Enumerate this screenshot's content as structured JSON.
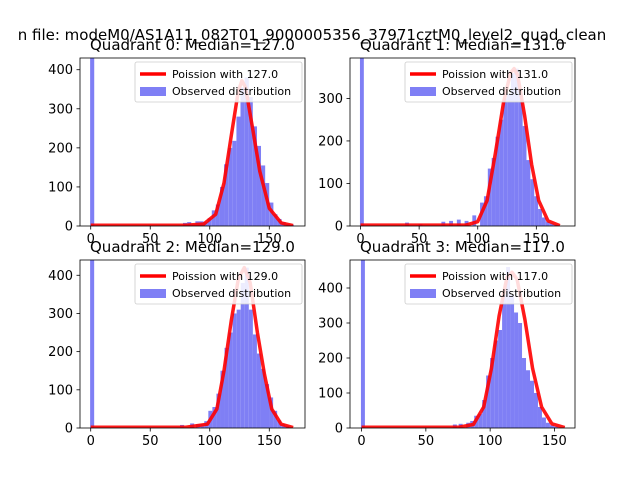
{
  "figure": {
    "suptitle": "n file: modeM0/AS1A11_082T01_9000005356_37971cztM0_level2_quad_clean"
  },
  "colors": {
    "hist": "#7f7ff5",
    "poisson": "#ff0000"
  },
  "chart_data": [
    {
      "type": "bar",
      "title": "Quadrant 0: Median=127.0",
      "xlim": [
        -9,
        180
      ],
      "ylim": [
        0,
        430
      ],
      "xticks": [
        0,
        50,
        100,
        150
      ],
      "yticks": [
        0,
        100,
        200,
        300,
        400
      ],
      "legend": [
        "Poission with 127.0",
        "Observed distribution"
      ],
      "bin_width": 3.45,
      "observed_bins": [
        [
          -0.5,
          430
        ],
        [
          77.5,
          8
        ],
        [
          81,
          10
        ],
        [
          84.4,
          5
        ],
        [
          87.9,
          12
        ],
        [
          91.3,
          12
        ],
        [
          94.8,
          10
        ],
        [
          98.2,
          20
        ],
        [
          101.7,
          40
        ],
        [
          105.1,
          55
        ],
        [
          108.6,
          100
        ],
        [
          112,
          158
        ],
        [
          115.5,
          200
        ],
        [
          118.9,
          218
        ],
        [
          122.4,
          280
        ],
        [
          125.8,
          355
        ],
        [
          129.3,
          380
        ],
        [
          132.7,
          330
        ],
        [
          136.2,
          255
        ],
        [
          139.6,
          205
        ],
        [
          143.1,
          155
        ],
        [
          146.5,
          110
        ],
        [
          150,
          60
        ],
        [
          153.4,
          30
        ],
        [
          156.9,
          18
        ],
        [
          160.3,
          10
        ],
        [
          163.8,
          5
        ],
        [
          167.2,
          3
        ]
      ],
      "poisson_curve": [
        [
          0,
          2
        ],
        [
          80,
          2
        ],
        [
          95,
          5
        ],
        [
          105,
          30
        ],
        [
          112,
          110
        ],
        [
          118,
          230
        ],
        [
          124,
          345
        ],
        [
          127,
          372
        ],
        [
          130,
          355
        ],
        [
          136,
          250
        ],
        [
          142,
          140
        ],
        [
          150,
          45
        ],
        [
          160,
          8
        ],
        [
          170,
          1
        ]
      ]
    },
    {
      "type": "bar",
      "title": "Quadrant 1: Median=131.0",
      "xlim": [
        -9,
        183
      ],
      "ylim": [
        0,
        395
      ],
      "xticks": [
        0,
        50,
        100,
        150
      ],
      "yticks": [
        0,
        100,
        200,
        300
      ],
      "legend": [
        "Poission with 131.0",
        "Observed distribution"
      ],
      "bin_width": 3.3,
      "observed_bins": [
        [
          -0.5,
          395
        ],
        [
          38,
          8
        ],
        [
          49.5,
          5
        ],
        [
          69,
          10
        ],
        [
          75.6,
          12
        ],
        [
          82.2,
          15
        ],
        [
          88.8,
          12
        ],
        [
          95.4,
          25
        ],
        [
          102,
          55
        ],
        [
          105.3,
          70
        ],
        [
          108.6,
          135
        ],
        [
          111.9,
          160
        ],
        [
          115.2,
          210
        ],
        [
          118.5,
          250
        ],
        [
          121.8,
          300
        ],
        [
          125.1,
          310
        ],
        [
          128.4,
          360
        ],
        [
          131.7,
          370
        ],
        [
          135,
          310
        ],
        [
          138.3,
          235
        ],
        [
          141.6,
          155
        ],
        [
          144.9,
          110
        ],
        [
          148.2,
          70
        ],
        [
          151.5,
          40
        ],
        [
          154.8,
          20
        ],
        [
          158.1,
          10
        ],
        [
          161.4,
          6
        ],
        [
          164.7,
          3
        ]
      ],
      "poisson_curve": [
        [
          0,
          2
        ],
        [
          90,
          2
        ],
        [
          100,
          10
        ],
        [
          108,
          60
        ],
        [
          115,
          170
        ],
        [
          122,
          290
        ],
        [
          128,
          360
        ],
        [
          131,
          370
        ],
        [
          134,
          355
        ],
        [
          140,
          260
        ],
        [
          146,
          145
        ],
        [
          152,
          60
        ],
        [
          160,
          12
        ],
        [
          170,
          1
        ]
      ]
    },
    {
      "type": "bar",
      "title": "Quadrant 2: Median=129.0",
      "xlim": [
        -9,
        180
      ],
      "ylim": [
        0,
        440
      ],
      "xticks": [
        0,
        50,
        100,
        150
      ],
      "yticks": [
        0,
        100,
        200,
        300,
        400
      ],
      "legend": [
        "Poission with 129.0",
        "Observed distribution"
      ],
      "bin_width": 3.4,
      "observed_bins": [
        [
          -0.5,
          440
        ],
        [
          75,
          8
        ],
        [
          83.5,
          12
        ],
        [
          88.5,
          10
        ],
        [
          92,
          10
        ],
        [
          95.4,
          18
        ],
        [
          98.8,
          45
        ],
        [
          102.2,
          55
        ],
        [
          105.6,
          90
        ],
        [
          109,
          150
        ],
        [
          112.4,
          210
        ],
        [
          115.8,
          250
        ],
        [
          119.2,
          300
        ],
        [
          122.6,
          310
        ],
        [
          126,
          380
        ],
        [
          129.4,
          420
        ],
        [
          132.8,
          310
        ],
        [
          136.2,
          245
        ],
        [
          139.6,
          195
        ],
        [
          143,
          155
        ],
        [
          146.4,
          115
        ],
        [
          149.8,
          80
        ],
        [
          153.2,
          45
        ],
        [
          156.6,
          20
        ],
        [
          160,
          10
        ],
        [
          163.4,
          5
        ]
      ],
      "poisson_curve": [
        [
          0,
          2
        ],
        [
          80,
          2
        ],
        [
          98,
          10
        ],
        [
          106,
          50
        ],
        [
          112,
          150
        ],
        [
          118,
          280
        ],
        [
          124,
          390
        ],
        [
          129,
          420
        ],
        [
          134,
          380
        ],
        [
          140,
          250
        ],
        [
          146,
          140
        ],
        [
          152,
          50
        ],
        [
          160,
          10
        ],
        [
          170,
          1
        ]
      ]
    },
    {
      "type": "bar",
      "title": "Quadrant 3: Median=117.0",
      "xlim": [
        -9,
        166
      ],
      "ylim": [
        0,
        480
      ],
      "xticks": [
        0,
        50,
        100,
        150
      ],
      "yticks": [
        0,
        100,
        200,
        300,
        400
      ],
      "legend": [
        "Poission with 117.0",
        "Observed distribution"
      ],
      "bin_width": 3.1,
      "observed_bins": [
        [
          -0.5,
          480
        ],
        [
          71,
          10
        ],
        [
          75.5,
          12
        ],
        [
          81.4,
          15
        ],
        [
          84.5,
          20
        ],
        [
          87.6,
          35
        ],
        [
          90.7,
          40
        ],
        [
          93.8,
          80
        ],
        [
          96.9,
          150
        ],
        [
          100,
          200
        ],
        [
          103.1,
          250
        ],
        [
          106.2,
          280
        ],
        [
          109.3,
          380
        ],
        [
          112.4,
          460
        ],
        [
          115.5,
          380
        ],
        [
          118.6,
          330
        ],
        [
          121.7,
          300
        ],
        [
          124.8,
          200
        ],
        [
          127.9,
          165
        ],
        [
          131,
          135
        ],
        [
          134.1,
          100
        ],
        [
          137.2,
          60
        ],
        [
          140.3,
          30
        ],
        [
          143.4,
          15
        ],
        [
          146.5,
          8
        ],
        [
          149.6,
          4
        ]
      ],
      "poisson_curve": [
        [
          0,
          2
        ],
        [
          75,
          2
        ],
        [
          87,
          10
        ],
        [
          95,
          60
        ],
        [
          101,
          170
        ],
        [
          107,
          320
        ],
        [
          113,
          430
        ],
        [
          117,
          445
        ],
        [
          121,
          425
        ],
        [
          127,
          310
        ],
        [
          133,
          170
        ],
        [
          140,
          60
        ],
        [
          148,
          12
        ],
        [
          158,
          1
        ]
      ]
    }
  ]
}
